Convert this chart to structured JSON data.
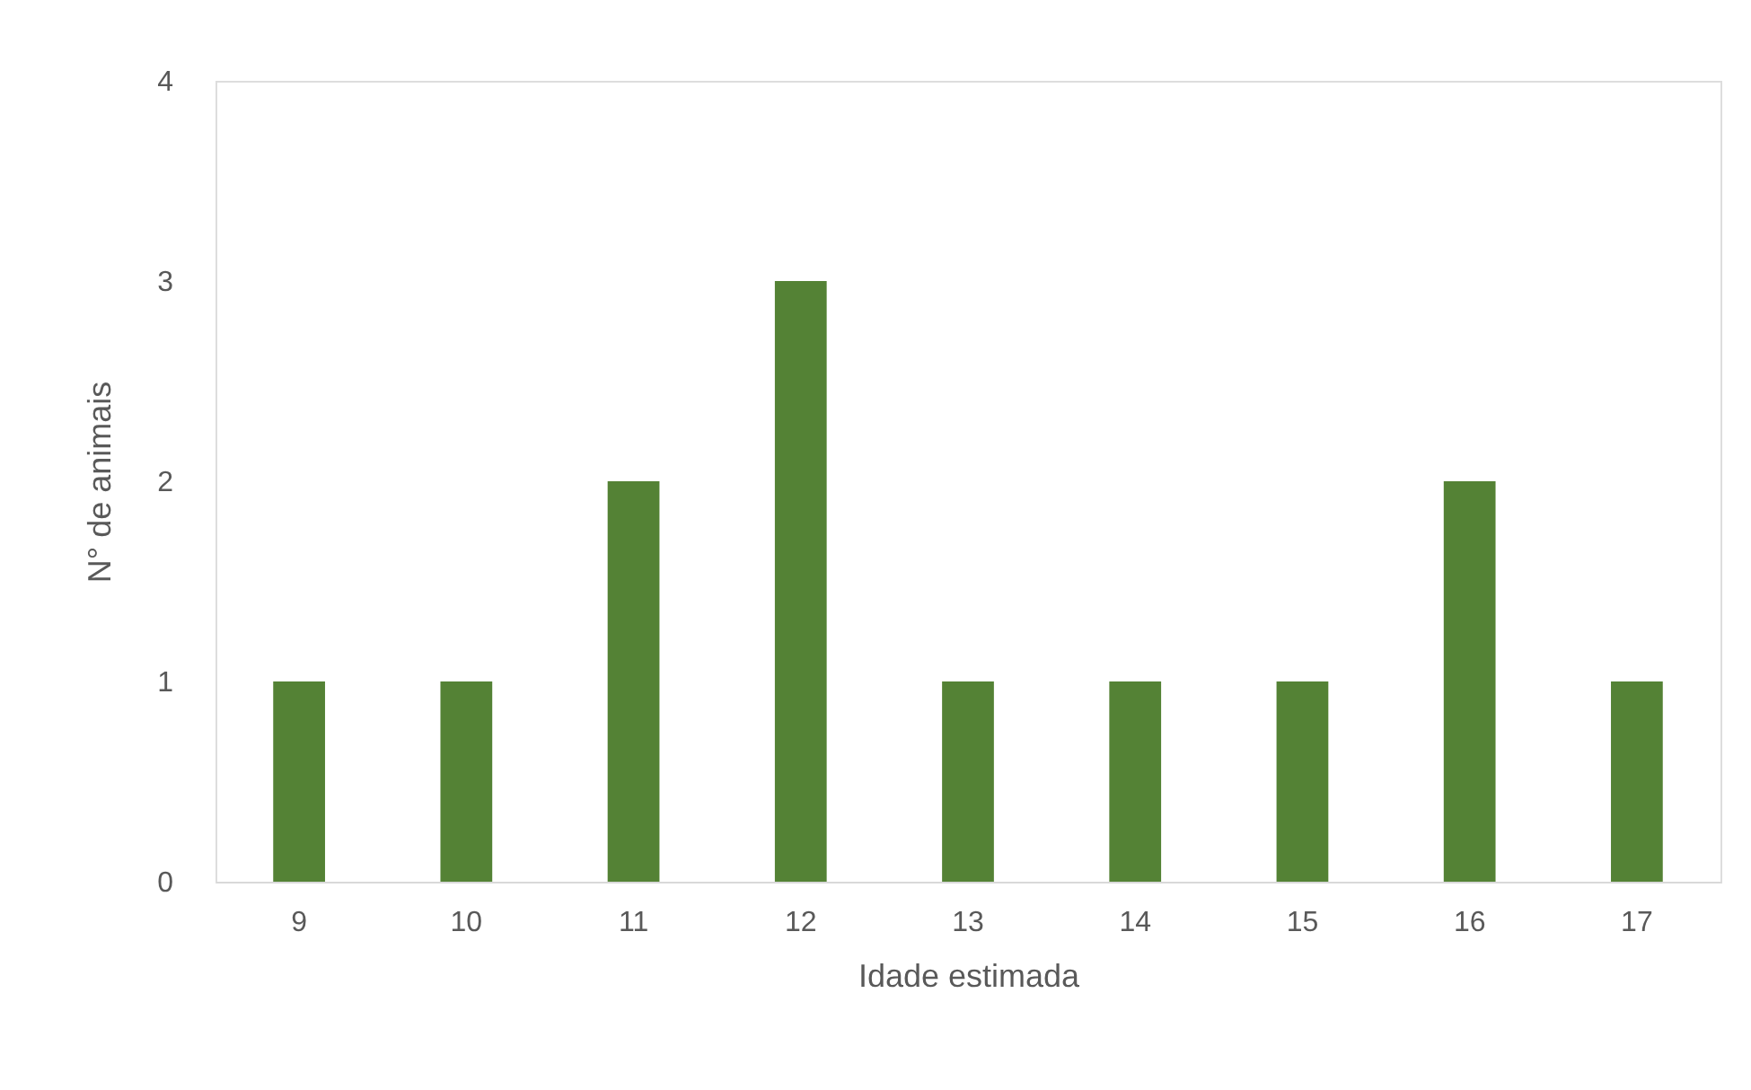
{
  "chart_data": {
    "type": "bar",
    "xlabel": "Idade estimada",
    "ylabel": "N° de animais",
    "categories": [
      "9",
      "10",
      "11",
      "12",
      "13",
      "14",
      "15",
      "16",
      "17"
    ],
    "values": [
      1,
      1,
      2,
      3,
      1,
      1,
      1,
      2,
      1
    ],
    "color": "#548235",
    "ylim": [
      0,
      4
    ],
    "yticks": [
      0,
      1,
      2,
      3,
      4
    ],
    "grid": false
  }
}
